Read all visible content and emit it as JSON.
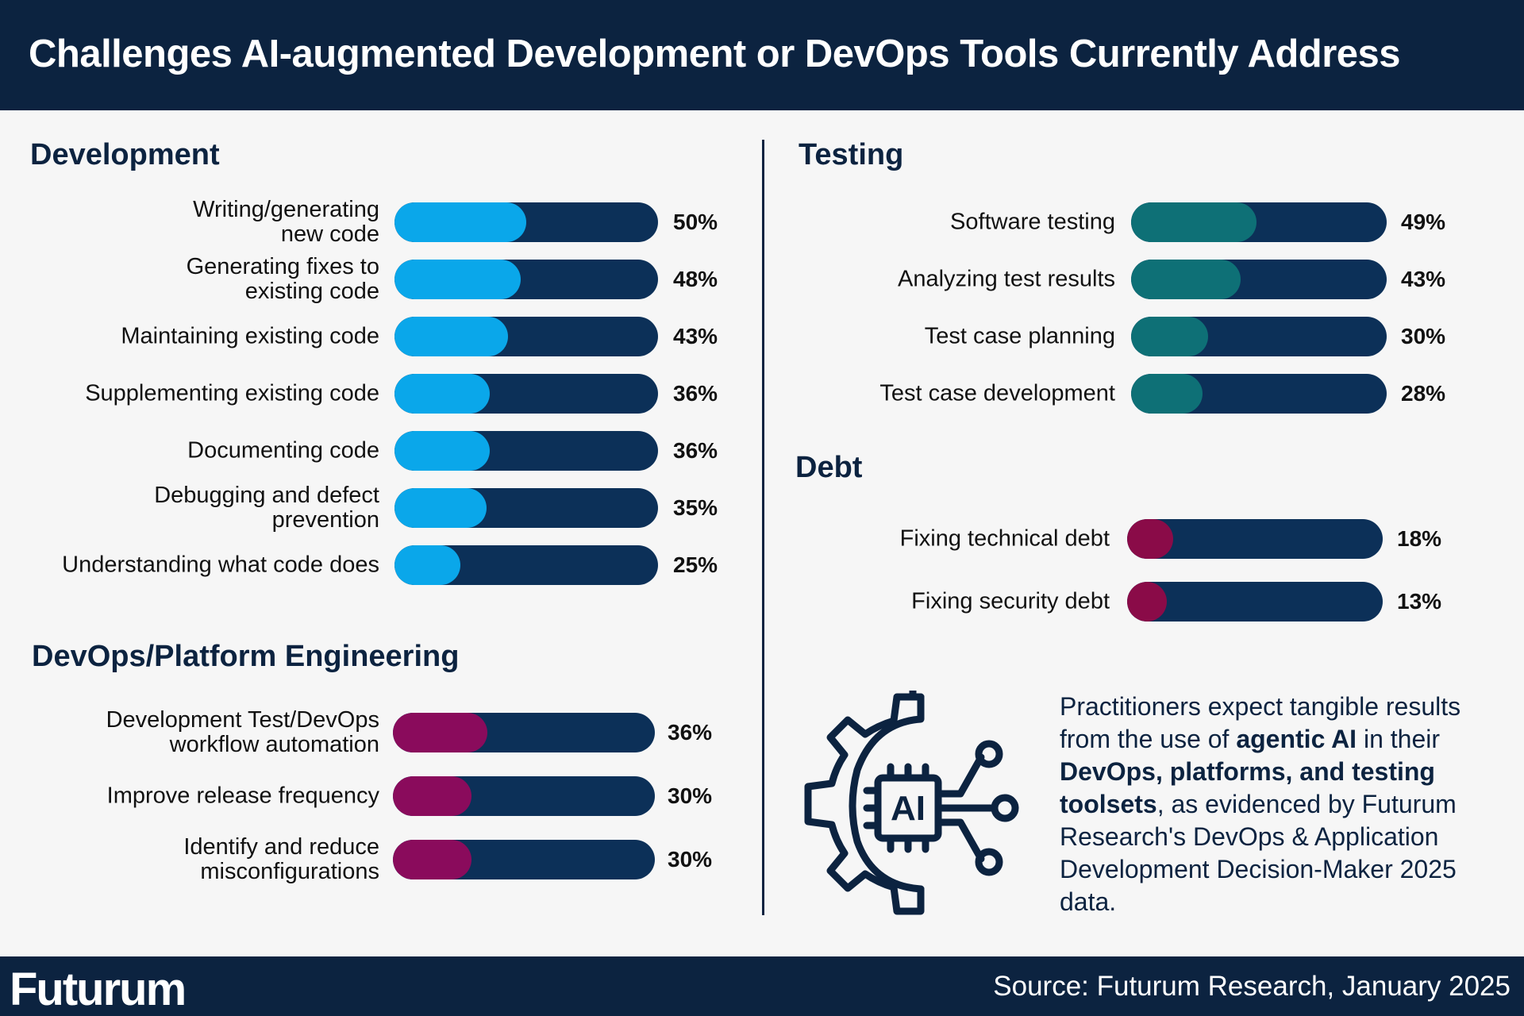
{
  "header": {
    "title": "Challenges AI-augmented Development or DevOps Tools Currently Address"
  },
  "footer": {
    "logo": "Futurum",
    "source": "Source: Futurum Research, January 2025"
  },
  "colors": {
    "navy": "#0c2340",
    "bar_track": "#0c3058",
    "development": "#0aa7ea",
    "devops": "#8a0b5c",
    "testing": "#0e7076",
    "debt": "#8a0b48"
  },
  "callout": {
    "p1": "Practitioners expect tangible results from the use of ",
    "b1": "agentic AI",
    "p2": " in their ",
    "b2": "DevOps, platforms, and testing toolsets",
    "p3": ", as evidenced by Futurum Research's DevOps & Application Development Decision-Maker 2025 data."
  },
  "icon": {
    "name": "ai-chip-gear-icon",
    "chip_text": "AI"
  },
  "chart_data": [
    {
      "type": "bar",
      "title": "Development",
      "categories": [
        "Writing/generating\nnew code",
        "Generating fixes to\nexisting code",
        "Maintaining existing code",
        "Supplementing existing code",
        "Documenting code",
        "Debugging and defect\nprevention",
        "Understanding what code does"
      ],
      "values": [
        50,
        48,
        43,
        36,
        36,
        35,
        25
      ],
      "labels": [
        "50%",
        "48%",
        "43%",
        "36%",
        "36%",
        "35%",
        "25%"
      ],
      "xlim": [
        0,
        100
      ]
    },
    {
      "type": "bar",
      "title": "DevOps/Platform Engineering",
      "categories": [
        "Development Test/DevOps\nworkflow automation",
        "Improve release frequency",
        "Identify and reduce\nmisconfigurations"
      ],
      "values": [
        36,
        30,
        30
      ],
      "labels": [
        "36%",
        "30%",
        "30%"
      ],
      "xlim": [
        0,
        100
      ]
    },
    {
      "type": "bar",
      "title": "Testing",
      "categories": [
        "Software testing",
        "Analyzing test results",
        "Test case planning",
        "Test case development"
      ],
      "values": [
        49,
        43,
        30,
        28
      ],
      "labels": [
        "49%",
        "43%",
        "30%",
        "28%"
      ],
      "xlim": [
        0,
        100
      ]
    },
    {
      "type": "bar",
      "title": "Debt",
      "categories": [
        "Fixing technical debt",
        "Fixing security debt"
      ],
      "values": [
        18,
        13
      ],
      "labels": [
        "18%",
        "13%"
      ],
      "xlim": [
        0,
        100
      ]
    }
  ]
}
